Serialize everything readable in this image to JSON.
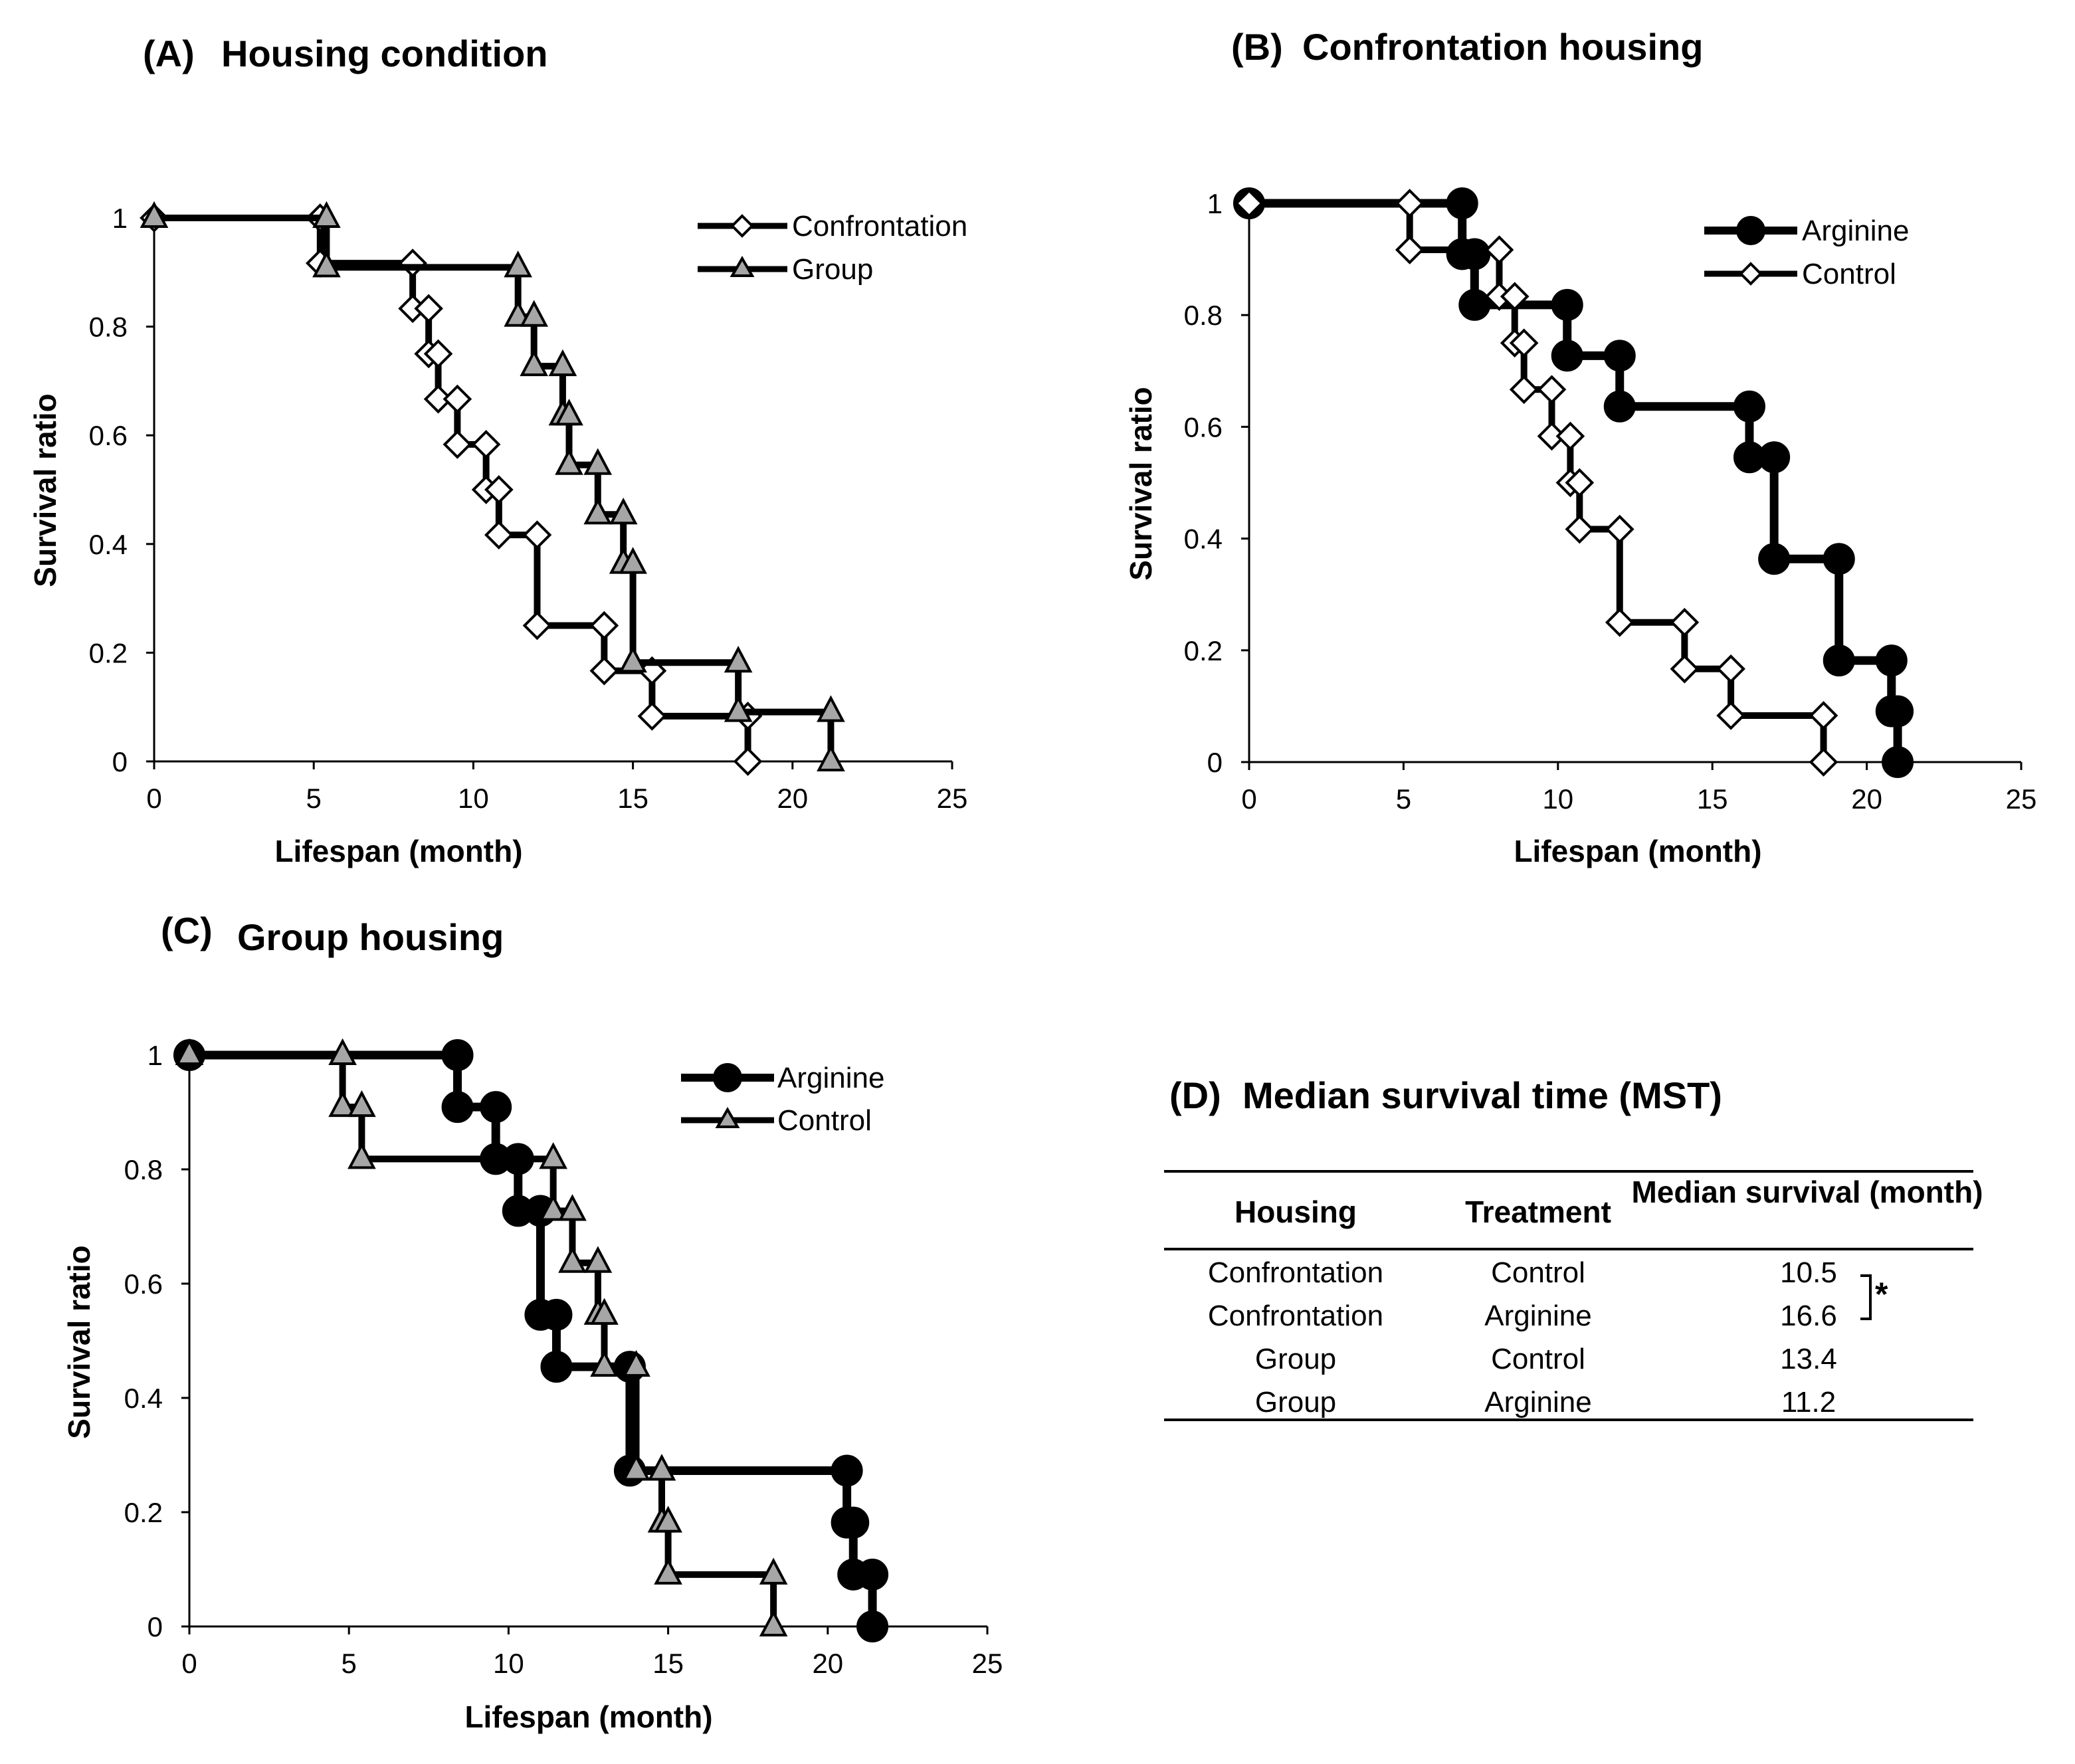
{
  "chart_data": [
    {
      "type": "line",
      "panel_label": "(A)",
      "title": "Housing condition",
      "xlabel": "Lifespan  (month)",
      "ylabel": "Survival ratio",
      "xlim": [
        0,
        25
      ],
      "ylim": [
        0,
        1
      ],
      "xticks": [
        "0",
        "5",
        "10",
        "15",
        "20",
        "25"
      ],
      "yticks": [
        "0",
        "0.2",
        "0.4",
        "0.6",
        "0.8",
        "1"
      ],
      "legend_position": "top-right",
      "series": [
        {
          "name": "Confrontation",
          "marker": "diamond",
          "fill": "#ffffff",
          "x": [
            0,
            5.2,
            8.1,
            8.6,
            8.9,
            9.5,
            10.4,
            10.8,
            12.0,
            14.1,
            15.6,
            18.6
          ],
          "y": [
            1,
            0.9167,
            0.8333,
            0.75,
            0.6667,
            0.5833,
            0.5,
            0.4167,
            0.25,
            0.1667,
            0.0833,
            0
          ]
        },
        {
          "name": "Group",
          "marker": "triangle",
          "fill": "#a6a6a6",
          "x": [
            0,
            5.4,
            11.4,
            11.9,
            12.8,
            13.0,
            13.9,
            14.7,
            15.0,
            18.3,
            21.2
          ],
          "y": [
            1,
            0.9091,
            0.8182,
            0.7273,
            0.6364,
            0.5455,
            0.4545,
            0.3636,
            0.1818,
            0.0909,
            0
          ]
        }
      ]
    },
    {
      "type": "line",
      "panel_label": "(B)",
      "title": "Confrontation housing",
      "xlabel": "Lifespan  (month)",
      "ylabel": "Survival ratio",
      "xlim": [
        0,
        25
      ],
      "ylim": [
        0,
        1
      ],
      "xticks": [
        "0",
        "5",
        "10",
        "15",
        "20",
        "25"
      ],
      "yticks": [
        "0",
        "0.2",
        "0.4",
        "0.6",
        "0.8",
        "1"
      ],
      "legend_position": "top-right",
      "series": [
        {
          "name": "Arginine",
          "marker": "circle",
          "fill": "#000000",
          "x": [
            0,
            6.9,
            7.3,
            10.3,
            12.0,
            16.2,
            17.0,
            19.1,
            20.8,
            21.0
          ],
          "y": [
            1,
            0.9091,
            0.8182,
            0.7273,
            0.6364,
            0.5455,
            0.3636,
            0.1818,
            0.0909,
            0
          ]
        },
        {
          "name": "Control",
          "marker": "diamond",
          "fill": "#ffffff",
          "x": [
            0,
            5.2,
            8.1,
            8.6,
            8.9,
            9.8,
            10.4,
            10.7,
            12.0,
            14.1,
            15.6,
            18.6
          ],
          "y": [
            1,
            0.9167,
            0.8333,
            0.75,
            0.6667,
            0.5833,
            0.5,
            0.4167,
            0.25,
            0.1667,
            0.0833,
            0
          ]
        }
      ]
    },
    {
      "type": "line",
      "panel_label": "(C)",
      "title": "Group housing",
      "xlabel": "Lifespan  (month)",
      "ylabel": "Survival ratio",
      "xlim": [
        0,
        25
      ],
      "ylim": [
        0,
        1
      ],
      "xticks": [
        "0",
        "5",
        "10",
        "15",
        "20",
        "25"
      ],
      "yticks": [
        "0",
        "0.2",
        "0.4",
        "0.6",
        "0.8",
        "1"
      ],
      "legend_position": "top-right",
      "series": [
        {
          "name": "Arginine",
          "marker": "circle",
          "fill": "#000000",
          "x": [
            0,
            8.4,
            9.6,
            10.3,
            11.0,
            11.5,
            13.8,
            20.6,
            20.8,
            21.4
          ],
          "y": [
            1,
            0.9091,
            0.8182,
            0.7273,
            0.5455,
            0.4545,
            0.2727,
            0.1818,
            0.0909,
            0
          ]
        },
        {
          "name": "Control",
          "marker": "triangle",
          "fill": "#a6a6a6",
          "x": [
            0,
            4.8,
            5.4,
            11.4,
            12.0,
            12.8,
            13.0,
            14.0,
            14.8,
            15.0,
            18.3
          ],
          "y": [
            1,
            0.9091,
            0.8182,
            0.7273,
            0.6364,
            0.5455,
            0.4545,
            0.2727,
            0.1818,
            0.0909,
            0
          ]
        }
      ]
    },
    {
      "type": "table",
      "panel_label": "(D)",
      "title": "Median survival time (MST)",
      "columns": [
        "Housing",
        "Treatment",
        "Median survival (month)"
      ],
      "rows": [
        [
          "Confrontation",
          "Control",
          "10.5"
        ],
        [
          "Confrontation",
          "Arginine",
          "16.6"
        ],
        [
          "Group",
          "Control",
          "13.4"
        ],
        [
          "Group",
          "Arginine",
          "11.2"
        ]
      ],
      "significance_mark": "*"
    }
  ],
  "colors": {
    "line": "#000000",
    "gray_fill": "#a6a6a6",
    "white_fill": "#ffffff"
  }
}
